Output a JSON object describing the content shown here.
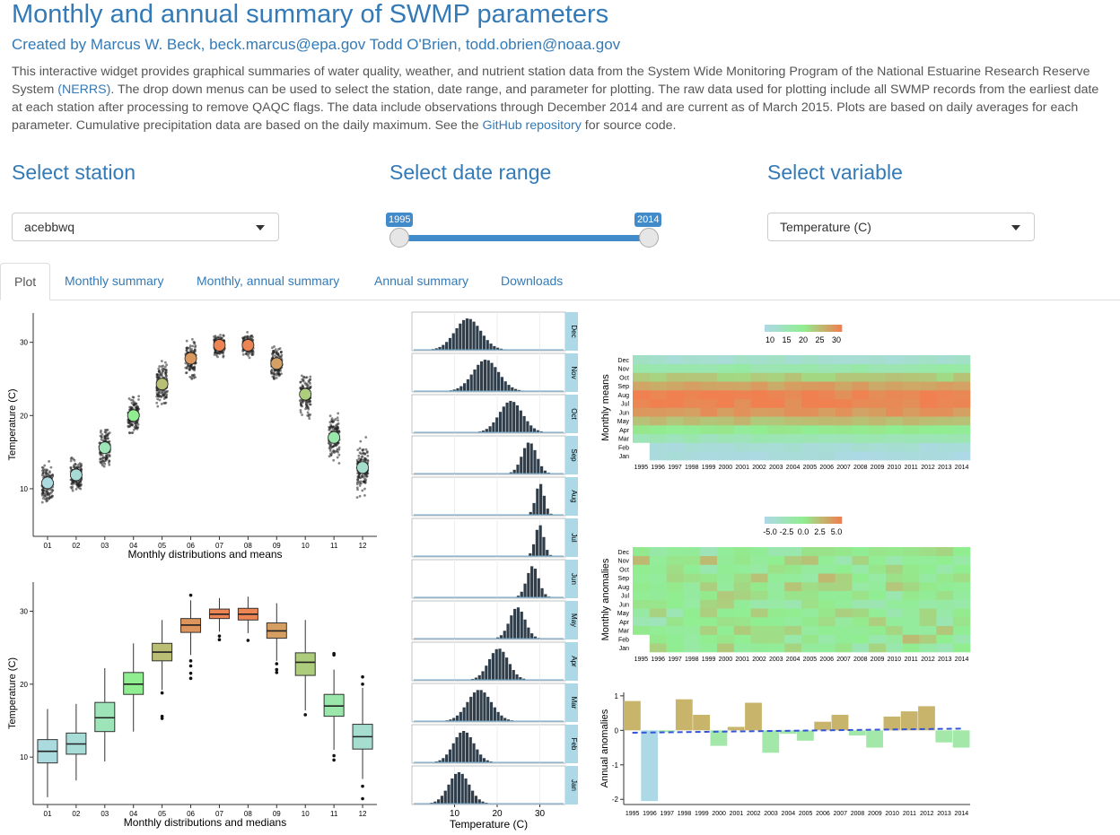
{
  "title": "Monthly and annual summary of SWMP parameters",
  "authors": {
    "prefix": "Created by Marcus W. Beck,",
    "email1": "beck.marcus@epa.gov",
    "name2": "Todd O'Brien,",
    "email2": "todd.obrien@noaa.gov"
  },
  "description": {
    "part1": "This interactive widget provides graphical summaries of water quality, weather, and nutrient station data from the System Wide Monitoring Program of the National Estuarine Research Reserve System ",
    "nerrs_link": "(NERRS)",
    "part2": ". The drop down menus can be used to select the station, date range, and parameter for plotting. The raw data used for plotting include all SWMP records from the earliest date at each station after processing to remove QAQC flags. The data include observations through December 2014 and are current as of March 2015. Plots are based on daily averages for each parameter. Cumulative precipitation data are based on the daily maximum. See the ",
    "github_link": "GitHub repository",
    "part3": " for source code."
  },
  "controls": {
    "station": {
      "label": "Select station",
      "value": "acebbwq"
    },
    "date_range": {
      "label": "Select date range",
      "min": "1995",
      "max": "2014"
    },
    "variable": {
      "label": "Select variable",
      "value": "Temperature (C)"
    }
  },
  "tabs": [
    {
      "label": "Plot",
      "active": true
    },
    {
      "label": "Monthly summary",
      "active": false
    },
    {
      "label": "Monthly, annual summary",
      "active": false
    },
    {
      "label": "Annual summary",
      "active": false
    },
    {
      "label": "Downloads",
      "active": false
    }
  ],
  "colors": {
    "accent": "#337ab7",
    "low": "#add8e6",
    "mid": "#90ee90",
    "high": "#f08050"
  },
  "chart_data": [
    {
      "type": "scatter",
      "ylabel": "Temperature (C)",
      "xlabel": "Monthly distributions and means",
      "categories": [
        "01",
        "02",
        "03",
        "04",
        "05",
        "06",
        "07",
        "08",
        "09",
        "10",
        "11",
        "12"
      ],
      "means": [
        10.8,
        11.9,
        15.6,
        20.0,
        24.3,
        27.8,
        29.6,
        29.6,
        27.1,
        22.9,
        17.0,
        12.9
      ],
      "spread": [
        [
          4.5,
          17
        ],
        [
          6.5,
          17
        ],
        [
          9.5,
          22.5
        ],
        [
          13.5,
          25.5
        ],
        [
          15.5,
          29
        ],
        [
          21,
          33
        ],
        [
          25.5,
          33
        ],
        [
          26,
          33
        ],
        [
          21,
          32
        ],
        [
          15.5,
          29
        ],
        [
          9.5,
          25
        ],
        [
          4.5,
          21
        ]
      ],
      "yticks": [
        10,
        20,
        30
      ],
      "ylim": [
        3.5,
        34
      ]
    },
    {
      "type": "box",
      "ylabel": "Temperature (C)",
      "xlabel": "Monthly distributions and medians",
      "categories": [
        "01",
        "02",
        "03",
        "04",
        "05",
        "06",
        "07",
        "08",
        "09",
        "10",
        "11",
        "12"
      ],
      "boxes": [
        {
          "lo": 4.5,
          "q1": 9.2,
          "med": 10.8,
          "q3": 12.4,
          "hi": 16.6,
          "out": []
        },
        {
          "lo": 6.8,
          "q1": 10.4,
          "med": 11.8,
          "q3": 13.3,
          "hi": 17.3,
          "out": []
        },
        {
          "lo": 9.4,
          "q1": 13.5,
          "med": 15.4,
          "q3": 17.5,
          "hi": 22.2,
          "out": []
        },
        {
          "lo": 13.5,
          "q1": 18.6,
          "med": 20.0,
          "q3": 21.6,
          "hi": 25.6,
          "out": []
        },
        {
          "lo": 19.2,
          "q1": 23.2,
          "med": 24.4,
          "q3": 25.6,
          "hi": 28.8,
          "out": [
            18.8,
            15.6,
            15.3
          ]
        },
        {
          "lo": 24.0,
          "q1": 27.1,
          "med": 28.1,
          "q3": 29.0,
          "hi": 31.5,
          "out": [
            23.2,
            22.5,
            21.5,
            20.8,
            32.2
          ]
        },
        {
          "lo": 27.2,
          "q1": 29.0,
          "med": 29.6,
          "q3": 30.3,
          "hi": 31.8,
          "out": [
            26.6,
            26.1
          ]
        },
        {
          "lo": 27.0,
          "q1": 28.8,
          "med": 29.6,
          "q3": 30.4,
          "hi": 32.0,
          "out": [
            26.0
          ]
        },
        {
          "lo": 23.2,
          "q1": 26.3,
          "med": 27.3,
          "q3": 28.4,
          "hi": 31.1,
          "out": [
            22.8,
            22.0,
            21.6
          ]
        },
        {
          "lo": 16.4,
          "q1": 21.2,
          "med": 23.0,
          "q3": 24.3,
          "hi": 28.8,
          "out": [
            15.8
          ]
        },
        {
          "lo": 11.0,
          "q1": 15.6,
          "med": 17.0,
          "q3": 18.6,
          "hi": 22.0,
          "out": [
            24.0,
            24.2,
            10.2,
            9.6
          ]
        },
        {
          "lo": 7.0,
          "q1": 11.1,
          "med": 12.8,
          "q3": 14.5,
          "hi": 19.5,
          "out": [
            6.0,
            4.3,
            20.0,
            21.0
          ]
        }
      ],
      "yticks": [
        10,
        20,
        30
      ],
      "ylim": [
        3.5,
        34
      ]
    },
    {
      "type": "bar",
      "subtype": "histogram-panels",
      "xlabel": "Temperature (C)",
      "xticks": [
        10,
        20,
        30
      ],
      "xlim": [
        0,
        36
      ],
      "panels": [
        {
          "month": "Dec",
          "center": 12.8,
          "sd": 3.0
        },
        {
          "month": "Nov",
          "center": 17.0,
          "sd": 3.0
        },
        {
          "month": "Oct",
          "center": 22.9,
          "sd": 2.7
        },
        {
          "month": "Sep",
          "center": 27.2,
          "sd": 1.7
        },
        {
          "month": "Aug",
          "center": 29.7,
          "sd": 1.0
        },
        {
          "month": "Jul",
          "center": 29.6,
          "sd": 1.0
        },
        {
          "month": "Jun",
          "center": 28.0,
          "sd": 1.4
        },
        {
          "month": "May",
          "center": 24.4,
          "sd": 1.8
        },
        {
          "month": "Apr",
          "center": 20.0,
          "sd": 2.3
        },
        {
          "month": "Mar",
          "center": 15.5,
          "sd": 2.8
        },
        {
          "month": "Feb",
          "center": 11.8,
          "sd": 2.4
        },
        {
          "month": "Jan",
          "center": 10.7,
          "sd": 2.4
        }
      ]
    },
    {
      "type": "heatmap",
      "ylabel": "Monthly means",
      "legend_ticks": [
        "10",
        "15",
        "20",
        "25",
        "30"
      ],
      "years": [
        "1995",
        "1996",
        "1997",
        "1998",
        "1999",
        "2000",
        "2001",
        "2002",
        "2003",
        "2004",
        "2005",
        "2006",
        "2007",
        "2008",
        "2009",
        "2010",
        "2011",
        "2012",
        "2013",
        "2014"
      ],
      "months": [
        "Jan",
        "Feb",
        "Mar",
        "Apr",
        "May",
        "Jun",
        "Jul",
        "Aug",
        "Sep",
        "Oct",
        "Nov",
        "Dec"
      ],
      "means": [
        10.8,
        11.9,
        15.6,
        20.0,
        24.3,
        27.8,
        29.6,
        29.6,
        27.1,
        22.9,
        17.0,
        12.9
      ],
      "missing": [
        [
          0,
          0
        ],
        [
          0,
          1
        ]
      ]
    },
    {
      "type": "heatmap",
      "ylabel": "Monthly anomalies",
      "legend_ticks": [
        "-5.0",
        "-2.5",
        "0.0",
        "2.5",
        "5.0"
      ],
      "years": [
        "1995",
        "1996",
        "1997",
        "1998",
        "1999",
        "2000",
        "2001",
        "2002",
        "2003",
        "2004",
        "2005",
        "2006",
        "2007",
        "2008",
        "2009",
        "2010",
        "2011",
        "2012",
        "2013",
        "2014"
      ],
      "months": [
        "Jan",
        "Feb",
        "Mar",
        "Apr",
        "May",
        "Jun",
        "Jul",
        "Aug",
        "Sep",
        "Oct",
        "Nov",
        "Dec"
      ],
      "missing": [
        [
          0,
          0
        ],
        [
          0,
          1
        ]
      ]
    },
    {
      "type": "bar",
      "ylabel": "Annual anomalies",
      "categories": [
        "1995",
        "1996",
        "1997",
        "1998",
        "1999",
        "2000",
        "2001",
        "2002",
        "2003",
        "2004",
        "2005",
        "2006",
        "2007",
        "2008",
        "2009",
        "2010",
        "2011",
        "2012",
        "2013",
        "2014"
      ],
      "values": [
        0.85,
        -2.05,
        -0.05,
        0.9,
        0.45,
        -0.45,
        0.1,
        0.8,
        -0.65,
        -0.1,
        -0.3,
        0.25,
        0.45,
        -0.15,
        -0.5,
        0.4,
        0.55,
        0.7,
        -0.35,
        -0.5
      ],
      "trend": [
        -0.07,
        0.05
      ],
      "yticks": [
        1,
        0,
        -1,
        -2
      ],
      "ylim": [
        -2.15,
        1.1
      ]
    }
  ]
}
